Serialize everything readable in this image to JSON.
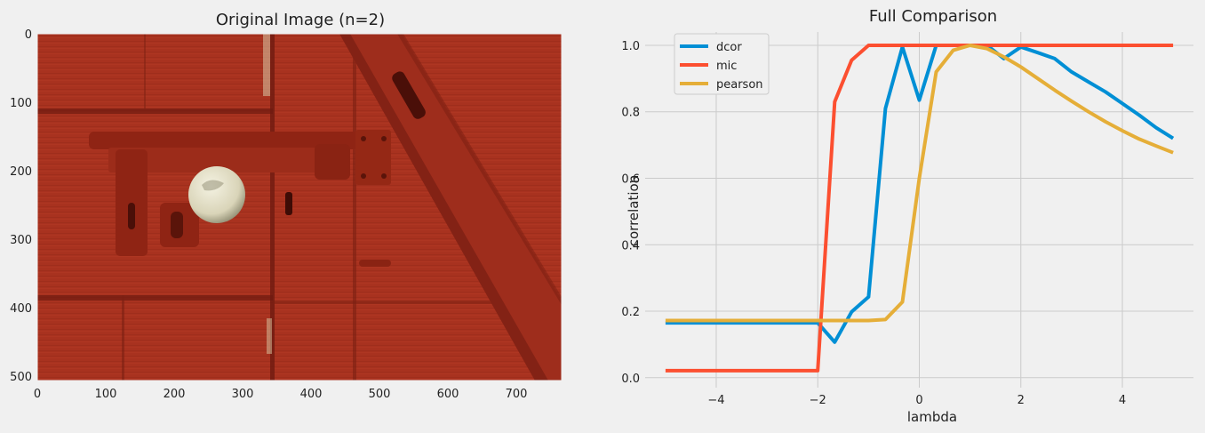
{
  "left_panel": {
    "title": "Original Image (n=2)",
    "x_ticks": [
      "0",
      "100",
      "200",
      "300",
      "400",
      "500",
      "600",
      "700"
    ],
    "y_ticks": [
      "0",
      "100",
      "200",
      "300",
      "400",
      "500"
    ],
    "image_description_colors": {
      "door": "#a5311f",
      "dark": "#6e1a10",
      "knob": "#e9e6cf"
    }
  },
  "chart_data": {
    "type": "line",
    "title": "Full Comparison",
    "xlabel": "lambda",
    "ylabel": "correlation",
    "xlim": [
      -5.4,
      5.4
    ],
    "ylim": [
      -0.03,
      1.04
    ],
    "x_ticks": [
      -4,
      -2,
      0,
      2,
      4
    ],
    "x_tick_labels": [
      "−4",
      "−2",
      "0",
      "2",
      "4"
    ],
    "y_ticks": [
      0.0,
      0.2,
      0.4,
      0.6,
      0.8,
      1.0
    ],
    "y_tick_labels": [
      "0.0",
      "0.2",
      "0.4",
      "0.6",
      "0.8",
      "1.0"
    ],
    "grid": true,
    "legend_position": "top-left",
    "x": [
      -5.0,
      -4.667,
      -4.333,
      -4.0,
      -3.667,
      -3.333,
      -3.0,
      -2.667,
      -2.333,
      -2.0,
      -1.667,
      -1.333,
      -1.0,
      -0.667,
      -0.333,
      0.0,
      0.333,
      0.667,
      1.0,
      1.333,
      1.667,
      2.0,
      2.333,
      2.667,
      3.0,
      3.333,
      3.667,
      4.0,
      4.333,
      4.667,
      5.0
    ],
    "series": [
      {
        "name": "dcor",
        "color": "#008fd5",
        "values": [
          0.165,
          0.165,
          0.165,
          0.165,
          0.165,
          0.165,
          0.165,
          0.165,
          0.165,
          0.165,
          0.107,
          0.198,
          0.243,
          0.81,
          0.995,
          0.835,
          1.0,
          1.0,
          1.0,
          1.0,
          0.96,
          0.995,
          0.978,
          0.96,
          0.92,
          0.89,
          0.86,
          0.825,
          0.79,
          0.752,
          0.72
        ]
      },
      {
        "name": "mic",
        "color": "#fc4f30",
        "values": [
          0.021,
          0.021,
          0.021,
          0.021,
          0.021,
          0.021,
          0.021,
          0.021,
          0.021,
          0.021,
          0.83,
          0.955,
          1.0,
          1.0,
          1.0,
          1.0,
          1.0,
          1.0,
          1.0,
          1.0,
          1.0,
          1.0,
          1.0,
          1.0,
          1.0,
          1.0,
          1.0,
          1.0,
          1.0,
          1.0,
          1.0
        ]
      },
      {
        "name": "pearson",
        "color": "#e5ae38",
        "values": [
          0.172,
          0.172,
          0.172,
          0.172,
          0.172,
          0.172,
          0.172,
          0.172,
          0.172,
          0.172,
          0.172,
          0.172,
          0.172,
          0.175,
          0.228,
          0.6,
          0.92,
          0.985,
          1.0,
          0.99,
          0.965,
          0.935,
          0.9,
          0.865,
          0.832,
          0.8,
          0.77,
          0.743,
          0.718,
          0.697,
          0.677
        ]
      }
    ]
  }
}
